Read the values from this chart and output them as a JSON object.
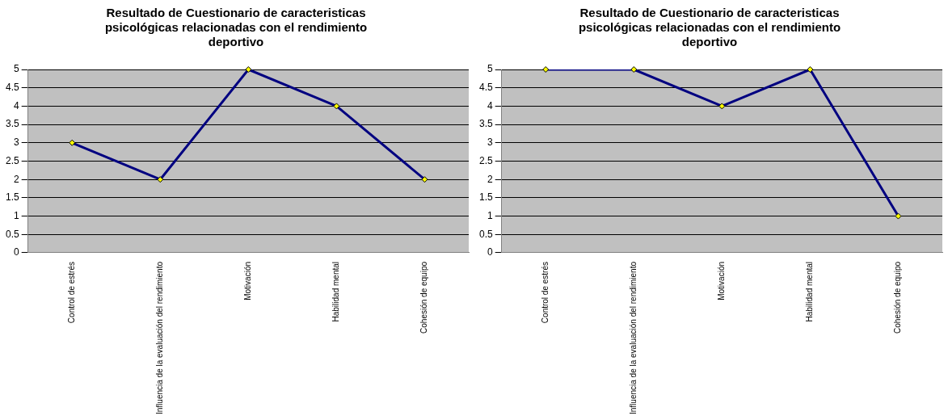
{
  "chart_data": [
    {
      "type": "line",
      "title": "Resultado de Cuestionario de caracteristicas psicológicas relacionadas con el rendimiento deportivo",
      "categories": [
        "Control de estrés",
        "Influencia de la evaluación del rendimiento",
        "Motivación",
        "Habilidad mental",
        "Cohesión de equipo"
      ],
      "series": [
        {
          "color": "#000080",
          "values": [
            3,
            2,
            5,
            4,
            2
          ]
        }
      ],
      "ylim": [
        0,
        5
      ],
      "yticks": [
        0,
        0.5,
        1,
        1.5,
        2,
        2.5,
        3,
        3.5,
        4,
        4.5,
        5
      ],
      "grid": "y",
      "legend": false,
      "marker": "diamond",
      "line_style": "solid"
    },
    {
      "type": "line",
      "title": "Resultado de Cuestionario de caracteristicas psicológicas relacionadas con el rendimiento deportivo",
      "categories": [
        "Control de estrés",
        "Influencia de la evaluación del rendimiento",
        "Motivación",
        "Habilidad mental",
        "Cohesión de equipo"
      ],
      "series": [
        {
          "color": "#000080",
          "values": [
            5,
            5,
            4,
            5,
            1
          ]
        }
      ],
      "ylim": [
        0,
        5
      ],
      "yticks": [
        0,
        0.5,
        1,
        1.5,
        2,
        2.5,
        3,
        3.5,
        4,
        4.5,
        5
      ],
      "grid": "y",
      "legend": false,
      "marker": "diamond",
      "line_style": "solid"
    }
  ]
}
